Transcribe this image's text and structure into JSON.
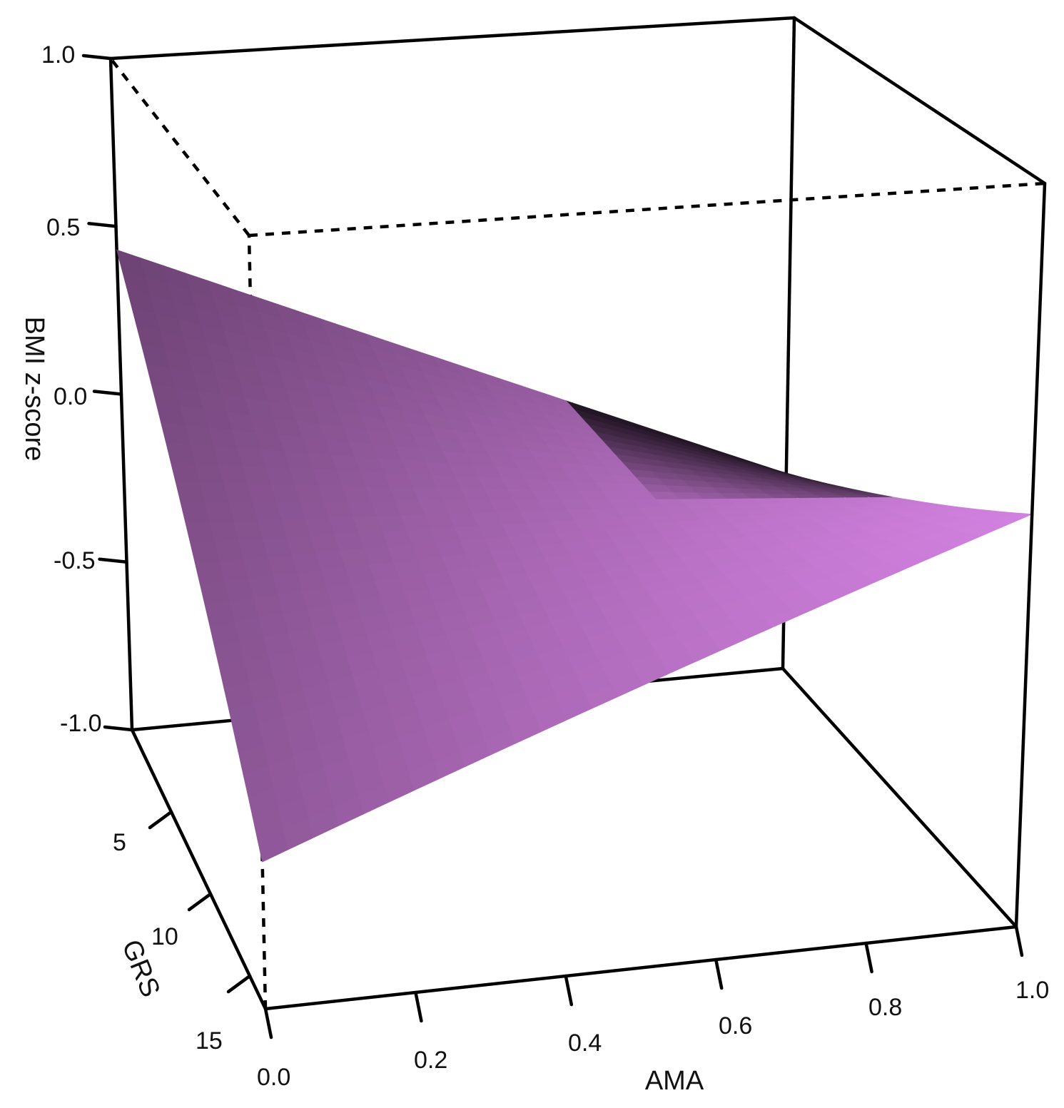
{
  "chart_data": {
    "type": "surface",
    "title": "",
    "surface_color": "#c77ad4",
    "axes": {
      "z": {
        "label": "BMI z-score",
        "range": [
          -1.0,
          1.0
        ],
        "ticks": [
          "1.0",
          "0.5",
          "0.0",
          "-0.5",
          "-1.0"
        ]
      },
      "x": {
        "label": "AMA",
        "range": [
          0.0,
          1.0
        ],
        "ticks": [
          "0.0",
          "0.2",
          "0.4",
          "0.6",
          "0.8",
          "1.0"
        ]
      },
      "y": {
        "label": "GRS",
        "range": [
          0,
          17
        ],
        "ticks": [
          "5",
          "10",
          "15"
        ]
      }
    },
    "surface_corners": [
      {
        "AMA": 0.0,
        "GRS": 0,
        "BMI": 0.43
      },
      {
        "AMA": 0.0,
        "GRS": 17,
        "BMI": -0.62
      },
      {
        "AMA": 1.0,
        "GRS": 0,
        "BMI": -0.4
      },
      {
        "AMA": 1.0,
        "GRS": 17,
        "BMI": 0.11
      }
    ]
  }
}
